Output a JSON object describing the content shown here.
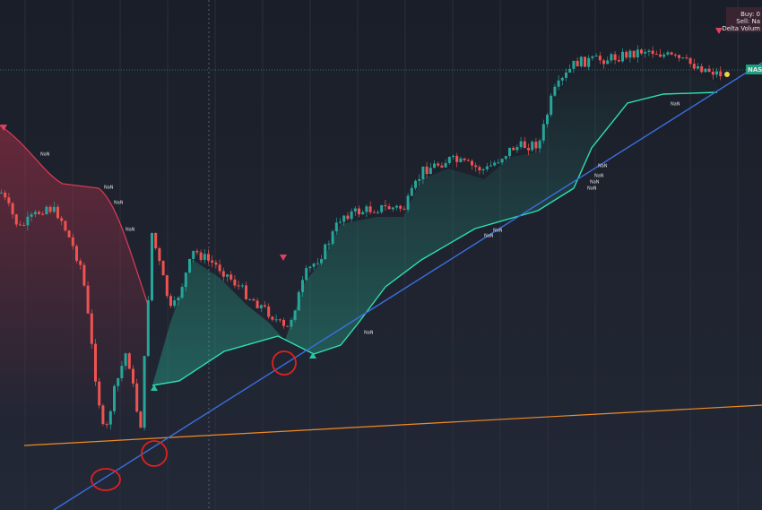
{
  "info_box": {
    "buy": "Buy: 0",
    "sell": "Sell: Na",
    "delta": "Delta Volum"
  },
  "price_tag": "NAS1",
  "nan_labels": [
    "NaN",
    "NaN",
    "NaN",
    "NaN",
    "NaN",
    "NaN",
    "NaN",
    "NaN",
    "NaN",
    "NaN",
    "NaN",
    "NaN"
  ]
}
